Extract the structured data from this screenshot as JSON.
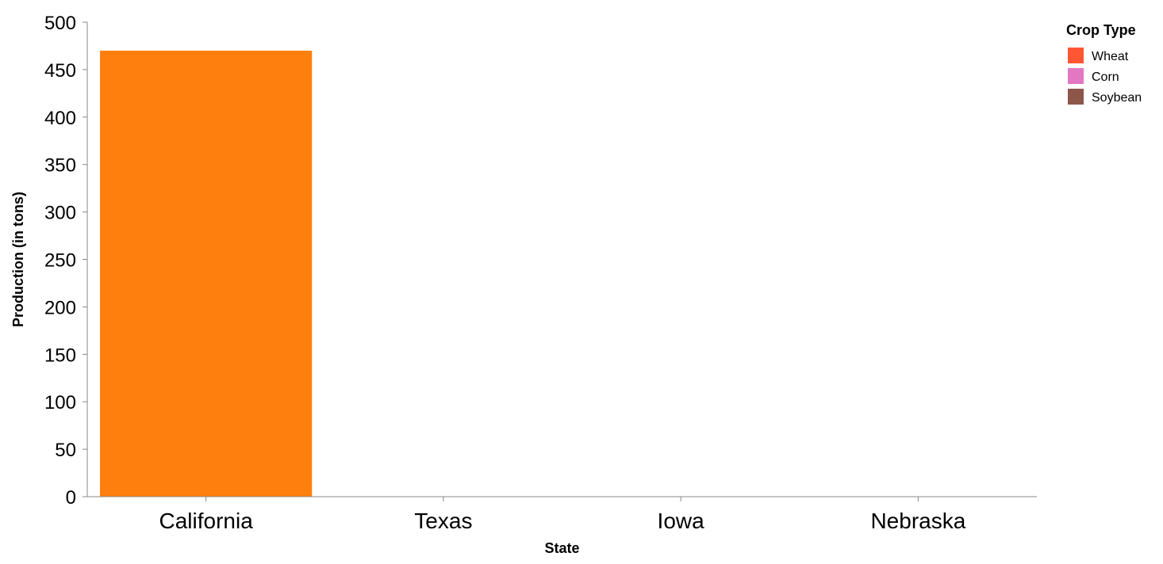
{
  "chart_data": {
    "type": "bar",
    "xlabel": "State",
    "ylabel": "Production (in tons)",
    "categories": [
      "California",
      "Texas",
      "Iowa",
      "Nebraska"
    ],
    "values": [
      470,
      0,
      0,
      0
    ],
    "bar_color": "#ff7f0e",
    "ylim": [
      0,
      500
    ],
    "yticks": [
      0,
      50,
      100,
      150,
      200,
      250,
      300,
      350,
      400,
      450,
      500
    ],
    "grid": false,
    "legend": {
      "title": "Crop Type",
      "placement": "top-right",
      "entries": [
        {
          "label": "Wheat",
          "color": "#ff5733"
        },
        {
          "label": "Corn",
          "color": "#e377c2"
        },
        {
          "label": "Soybean",
          "color": "#8c564b"
        }
      ]
    }
  }
}
